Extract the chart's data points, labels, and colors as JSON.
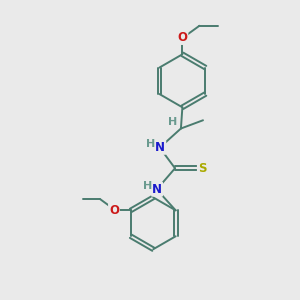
{
  "bg_color": "#eaeaea",
  "bond_color": "#4a7c6f",
  "bond_width": 1.4,
  "atom_colors": {
    "N": "#1a1acc",
    "O": "#cc1a1a",
    "S": "#aaaa00",
    "H": "#6a9a8f",
    "C": "#4a7c6f"
  },
  "font_size_atom": 8.5
}
